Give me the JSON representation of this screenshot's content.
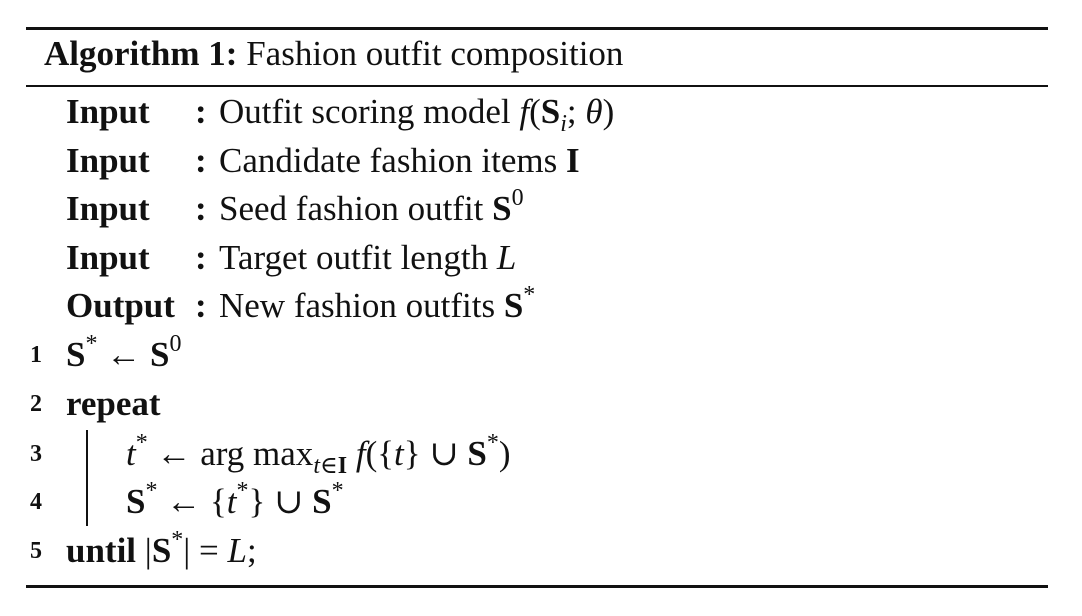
{
  "algorithm": {
    "label": "Algorithm 1:",
    "title": "Fashion outfit composition"
  },
  "io": [
    {
      "keyword": "Input",
      "colon": ":",
      "text": "Outfit scoring model",
      "f": "f",
      "lparen": "(",
      "S": "S",
      "sub": "i",
      "semi": "; ",
      "theta": "θ",
      "rparen": ")"
    },
    {
      "keyword": "Input",
      "colon": ":",
      "text": "Candidate fashion items",
      "I": "I"
    },
    {
      "keyword": "Input",
      "colon": ":",
      "text": "Seed fashion outfit",
      "S": "S",
      "sup": "0"
    },
    {
      "keyword": "Input",
      "colon": ":",
      "text": "Target outfit length",
      "L": "L"
    },
    {
      "keyword": "Output",
      "colon": ":",
      "text": "New fashion outfits",
      "S": "S",
      "sup": "*"
    }
  ],
  "lines": [
    {
      "num": "1",
      "S": "S",
      "star": "*",
      "arrow": " ← ",
      "S2": "S",
      "zero": "0"
    },
    {
      "num": "2",
      "keyword": "repeat"
    },
    {
      "num": "3",
      "t": "t",
      "star": "*",
      "arrow": " ← ",
      "argmax": "arg max",
      "sub_t": "t",
      "in": "∈",
      "I": "I",
      "f": " f",
      "open": "({",
      "t2": "t",
      "close": "} ∪ ",
      "S": "S",
      "star2": "*",
      "end": ")"
    },
    {
      "num": "4",
      "S": "S",
      "star": "*",
      "arrow": " ← {",
      "t": "t",
      "star2": "*",
      "close": "} ∪ ",
      "S2": "S",
      "star3": "*"
    },
    {
      "num": "5",
      "keyword": "until",
      "bar1": " |",
      "S": "S",
      "star": "*",
      "bar2": "| = ",
      "L": "L",
      "end": ";"
    }
  ]
}
